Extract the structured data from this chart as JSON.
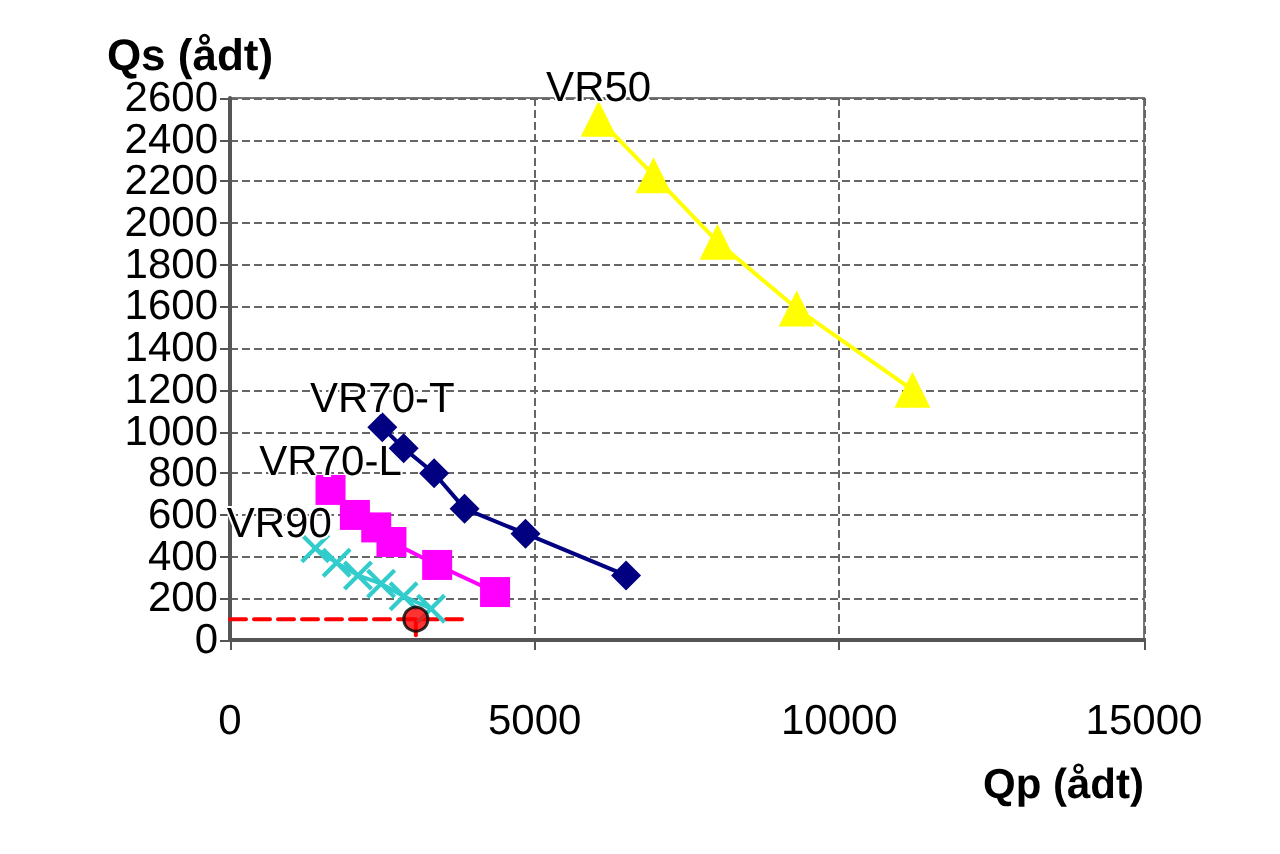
{
  "chart_data": {
    "type": "line",
    "xlabel": "Qp (ådt)",
    "ylabel": "Qs (ådt)",
    "xlim": [
      0,
      15000
    ],
    "xticks": [
      0,
      5000,
      10000,
      15000
    ],
    "ylim": [
      0,
      2600
    ],
    "yticks": [
      0,
      200,
      400,
      600,
      800,
      1000,
      1200,
      1400,
      1600,
      1800,
      2000,
      2200,
      2400,
      2600
    ],
    "grid": true,
    "legend": false,
    "series": [
      {
        "name": "VR50",
        "color": "#ffff00",
        "marker": "triangle",
        "x": [
          6050,
          6950,
          8000,
          9300,
          11200
        ],
        "values": [
          2500,
          2230,
          1910,
          1590,
          1200
        ]
      },
      {
        "name": "VR70-T",
        "color": "#000080",
        "marker": "diamond",
        "x": [
          2500,
          2850,
          3350,
          3850,
          4850,
          6500
        ],
        "values": [
          1020,
          920,
          800,
          630,
          510,
          310
        ]
      },
      {
        "name": "VR70-L",
        "color": "#ff00ff",
        "marker": "square",
        "x": [
          1650,
          2050,
          2400,
          2650,
          3400,
          4350
        ],
        "values": [
          720,
          600,
          540,
          470,
          360,
          230
        ]
      },
      {
        "name": "VR90",
        "color": "#33cccc",
        "marker": "cross",
        "x": [
          1400,
          1750,
          2100,
          2480,
          2850,
          3300
        ],
        "values": [
          440,
          370,
          310,
          270,
          210,
          150
        ]
      },
      {
        "type": "scatter",
        "color": "#ff0000",
        "marker": "circle",
        "x": [
          3050
        ],
        "values": [
          100
        ]
      },
      {
        "color": "#ff0000",
        "marker": "none",
        "line_style": "dashed",
        "x": [
          0,
          3900
        ],
        "values": [
          100,
          100
        ]
      },
      {
        "color": "#ff0000",
        "marker": "none",
        "line_style": "dashed",
        "x": [
          3050,
          3050
        ],
        "values": [
          100,
          0
        ]
      }
    ]
  }
}
